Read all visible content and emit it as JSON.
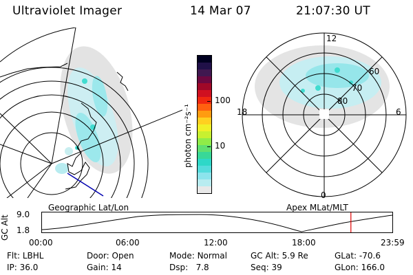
{
  "header": {
    "instrument": "Ultraviolet Imager",
    "date": "14 Mar 07",
    "time": "21:07:30 UT"
  },
  "colorbar": {
    "unit_label": "photon cm⁻²s⁻¹",
    "ticks": [
      {
        "label": "100",
        "value": 100
      },
      {
        "label": "10",
        "value": 10
      }
    ],
    "colors": [
      "#e8e8e8",
      "#b8ecf0",
      "#8ce4ec",
      "#54dcdc",
      "#2ed8c8",
      "#38d898",
      "#60e070",
      "#90ec48",
      "#c8f030",
      "#f0f028",
      "#ffd020",
      "#ff9c10",
      "#ff6010",
      "#f02810",
      "#d01020",
      "#a00828",
      "#6c0840",
      "#401850",
      "#201048",
      "#000020"
    ]
  },
  "polar_plot": {
    "mlt_labels": {
      "top": "12",
      "left": "18",
      "right": "6",
      "bottom": "0"
    },
    "lat_labels": [
      "60",
      "70",
      "80"
    ],
    "panel_label": "Apex MLat/MLT"
  },
  "geo_plot": {
    "panel_label": "Geographic Lat/Lon"
  },
  "timeline": {
    "y_label": "GC Alt",
    "y_ticks": [
      "9.0",
      "1.8"
    ],
    "x_ticks": [
      "00:00",
      "06:00",
      "12:00",
      "18:00",
      "23:59"
    ],
    "current_time_marker_hours": 21.125,
    "marker_color": "#e00000"
  },
  "status": {
    "row1": [
      {
        "key": "Flt:",
        "val": "LBHL"
      },
      {
        "key": "Door:",
        "val": "Open"
      },
      {
        "key": "Mode:",
        "val": "Normal"
      },
      {
        "key": "GC Alt:",
        "val": "5.9 Re"
      },
      {
        "key": "GLat:",
        "val": "-70.6"
      }
    ],
    "row2": [
      {
        "key": "IP:",
        "val": "36.0"
      },
      {
        "key": "Gain:",
        "val": "14"
      },
      {
        "key": "Dsp:",
        "val": "7.8"
      },
      {
        "key": "Seq:",
        "val": "39"
      },
      {
        "key": "GLon:",
        "val": "166.0"
      }
    ]
  }
}
